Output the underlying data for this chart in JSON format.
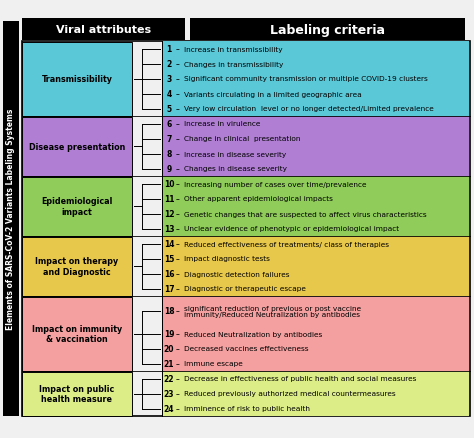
{
  "title": "Labeling criteria",
  "y_label": "Elements of SARS-CoV-2 Variants Labeling Systems",
  "x_label": "Viral attributes",
  "categories": [
    {
      "name": "Transmissibility",
      "color": "#5bc8d8",
      "items": [
        {
          "num": 1,
          "text": "Increase in transmissibility"
        },
        {
          "num": 2,
          "text": "Changes in transmissibility"
        },
        {
          "num": 3,
          "text": "Significant community transmission or multiple COVID-19 clusters"
        },
        {
          "num": 4,
          "text": "Variants circulating in a limited geographic area"
        },
        {
          "num": 5,
          "text": "Very low circulation  level or no longer detected/Limited prevalence"
        }
      ]
    },
    {
      "name": "Disease presentation",
      "color": "#b07fd4",
      "items": [
        {
          "num": 6,
          "text": "Increase in virulence"
        },
        {
          "num": 7,
          "text": "Change in clinical  presentation"
        },
        {
          "num": 8,
          "text": "Increase in disease severity"
        },
        {
          "num": 9,
          "text": "Changes in disease severity"
        }
      ]
    },
    {
      "name": "Epidemiological\nimpact",
      "color": "#8fcc5a",
      "items": [
        {
          "num": 10,
          "text": "Increasing number of cases over time/prevalence"
        },
        {
          "num": 11,
          "text": "Other apparent epidemiological impacts"
        },
        {
          "num": 12,
          "text": "Genetic changes that are suspected to affect virus characteristics"
        },
        {
          "num": 13,
          "text": "Unclear evidence of phenotypic or epidemiological impact"
        }
      ]
    },
    {
      "name": "Impact on therapy\nand Diagnostic",
      "color": "#e8c84a",
      "items": [
        {
          "num": 14,
          "text": "Reduced effectiveness of treatments/ class of therapies"
        },
        {
          "num": 15,
          "text": "Impact diagnostic tests"
        },
        {
          "num": 16,
          "text": "Diagnostic detection failures"
        },
        {
          "num": 17,
          "text": "Diagnostic or therapeutic escape"
        }
      ]
    },
    {
      "name": "Impact on immunity\n& vaccination",
      "color": "#f4a0a0",
      "items": [
        {
          "num": 18,
          "text": "significant reduction of previous or post vaccine\nimmunity/Reduced Neutralization by antibodies",
          "tall": true
        },
        {
          "num": 19,
          "text": "Reduced Neutralization by antibodies"
        },
        {
          "num": 20,
          "text": "Decreased vaccines effectiveness"
        },
        {
          "num": 21,
          "text": "Immune escape"
        }
      ]
    },
    {
      "name": "Impact on public\nhealth measure",
      "color": "#dced88",
      "items": [
        {
          "num": 22,
          "text": "Decrease in effectiveness of public health and social measures"
        },
        {
          "num": 23,
          "text": "Reduced previously authorized medical countermeasures"
        },
        {
          "num": 24,
          "text": "Imminence of risk to public health"
        }
      ]
    }
  ],
  "bg_color": "#f0f0f0",
  "title_bg": "#000000",
  "title_fg": "#ffffff",
  "viral_attr_bg": "#000000",
  "viral_attr_fg": "#ffffff"
}
